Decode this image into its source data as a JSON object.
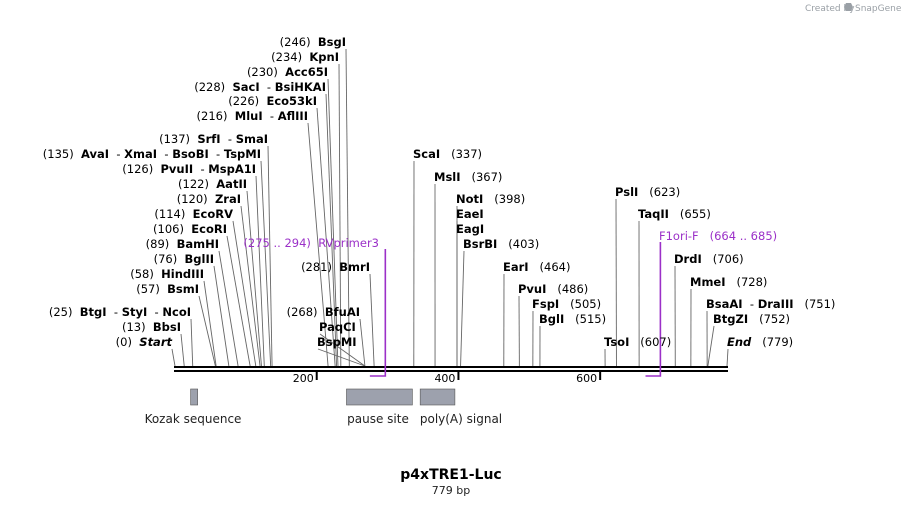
{
  "credit": {
    "text": "Created by",
    "brand": "SnapGene"
  },
  "plasmid": {
    "name": "p4xTRE1-Luc",
    "length_label": "779 bp",
    "length": 779
  },
  "ticks": [
    {
      "pos": 200,
      "label": "200"
    },
    {
      "pos": 400,
      "label": "400"
    },
    {
      "pos": 600,
      "label": "600"
    }
  ],
  "enzymes": [
    {
      "parts": [
        {
          "name": "BsgI"
        }
      ],
      "num": "(246)",
      "pos": 246,
      "side": "left",
      "italic": false
    },
    {
      "parts": [
        {
          "name": "KpnI"
        }
      ],
      "num": "(234)",
      "pos": 234,
      "side": "left",
      "italic": false
    },
    {
      "parts": [
        {
          "name": "Acc65I"
        }
      ],
      "num": "(230)",
      "pos": 230,
      "side": "left",
      "italic": false
    },
    {
      "parts": [
        {
          "name": "SacI"
        },
        {
          "name": "BsiHKAI"
        }
      ],
      "num": "(228)",
      "pos": 228,
      "side": "left",
      "italic": false
    },
    {
      "parts": [
        {
          "name": "Eco53kI"
        }
      ],
      "num": "(226)",
      "pos": 226,
      "side": "left",
      "italic": false
    },
    {
      "parts": [
        {
          "name": "MluI"
        },
        {
          "name": "AflIII"
        }
      ],
      "num": "(216)",
      "pos": 216,
      "side": "left",
      "italic": false
    },
    {
      "parts": [
        {
          "name": "SrfI"
        },
        {
          "name": "SmaI"
        }
      ],
      "num": "(137)",
      "pos": 137,
      "side": "left",
      "italic": false
    },
    {
      "parts": [
        {
          "name": "AvaI"
        },
        {
          "name": "XmaI"
        },
        {
          "name": "BsoBI"
        },
        {
          "name": "TspMI"
        }
      ],
      "num": "(135)",
      "pos": 135,
      "side": "left",
      "italic": false
    },
    {
      "parts": [
        {
          "name": "PvuII"
        },
        {
          "name": "MspA1I"
        }
      ],
      "num": "(126)",
      "pos": 126,
      "side": "left",
      "italic": false
    },
    {
      "parts": [
        {
          "name": "AatII"
        }
      ],
      "num": "(122)",
      "pos": 122,
      "side": "left",
      "italic": false
    },
    {
      "parts": [
        {
          "name": "ZraI"
        }
      ],
      "num": "(120)",
      "pos": 120,
      "side": "left",
      "italic": false
    },
    {
      "parts": [
        {
          "name": "EcoRV"
        }
      ],
      "num": "(114)",
      "pos": 114,
      "side": "left",
      "italic": false
    },
    {
      "parts": [
        {
          "name": "EcoRI"
        }
      ],
      "num": "(106)",
      "pos": 106,
      "side": "left",
      "italic": false
    },
    {
      "parts": [
        {
          "name": "BamHI"
        }
      ],
      "num": "(89)",
      "pos": 89,
      "side": "left",
      "italic": false
    },
    {
      "parts": [
        {
          "name": "BglII"
        }
      ],
      "num": "(76)",
      "pos": 76,
      "side": "left",
      "italic": false
    },
    {
      "parts": [
        {
          "name": "HindIII"
        }
      ],
      "num": "(58)",
      "pos": 58,
      "side": "left",
      "italic": false
    },
    {
      "parts": [
        {
          "name": "BsmI"
        }
      ],
      "num": "(57)",
      "pos": 57,
      "side": "left",
      "italic": false
    },
    {
      "parts": [
        {
          "name": "BtgI"
        },
        {
          "name": "StyI"
        },
        {
          "name": "NcoI"
        }
      ],
      "num": "(25)",
      "pos": 25,
      "side": "left",
      "italic": false
    },
    {
      "parts": [
        {
          "name": "BbsI"
        }
      ],
      "num": "(13)",
      "pos": 13,
      "side": "left",
      "italic": false
    },
    {
      "parts": [
        {
          "name": "Start"
        }
      ],
      "num": "(0)",
      "pos": 0,
      "side": "left",
      "italic": true
    },
    {
      "parts": [
        {
          "name": "BmrI"
        }
      ],
      "num": "(281)",
      "pos": 281,
      "side": "left",
      "italic": false
    },
    {
      "parts": [
        {
          "name": "BfuAI"
        }
      ],
      "num": "(268)",
      "pos": 268,
      "side": "left",
      "italic": false
    },
    {
      "parts": [
        {
          "name": "PaqCI"
        }
      ],
      "num": "",
      "pos": 268,
      "side": "right",
      "italic": false
    },
    {
      "parts": [
        {
          "name": "BspMI"
        }
      ],
      "num": "",
      "pos": 268,
      "side": "right",
      "italic": false
    },
    {
      "parts": [
        {
          "name": "ScaI"
        }
      ],
      "num": "(337)",
      "pos": 337,
      "side": "right",
      "italic": false
    },
    {
      "parts": [
        {
          "name": "MslI"
        }
      ],
      "num": "(367)",
      "pos": 367,
      "side": "right",
      "italic": false
    },
    {
      "parts": [
        {
          "name": "NotI"
        }
      ],
      "num": "(398)",
      "pos": 398,
      "side": "right",
      "italic": false
    },
    {
      "parts": [
        {
          "name": "EaeI"
        }
      ],
      "num": "",
      "pos": 398,
      "side": "right",
      "italic": false
    },
    {
      "parts": [
        {
          "name": "EagI"
        }
      ],
      "num": "",
      "pos": 398,
      "side": "right",
      "italic": false
    },
    {
      "parts": [
        {
          "name": "BsrBI"
        }
      ],
      "num": "(403)",
      "pos": 403,
      "side": "right",
      "italic": false
    },
    {
      "parts": [
        {
          "name": "EarI"
        }
      ],
      "num": "(464)",
      "pos": 464,
      "side": "right",
      "italic": false
    },
    {
      "parts": [
        {
          "name": "PvuI"
        }
      ],
      "num": "(486)",
      "pos": 486,
      "side": "right",
      "italic": false
    },
    {
      "parts": [
        {
          "name": "FspI"
        }
      ],
      "num": "(505)",
      "pos": 505,
      "side": "right",
      "italic": false
    },
    {
      "parts": [
        {
          "name": "BglI"
        }
      ],
      "num": "(515)",
      "pos": 515,
      "side": "right",
      "italic": false
    },
    {
      "parts": [
        {
          "name": "TsoI"
        }
      ],
      "num": "(607)",
      "pos": 607,
      "side": "right",
      "italic": false
    },
    {
      "parts": [
        {
          "name": "PslI"
        }
      ],
      "num": "(623)",
      "pos": 623,
      "side": "right",
      "italic": false
    },
    {
      "parts": [
        {
          "name": "TaqII"
        }
      ],
      "num": "(655)",
      "pos": 655,
      "side": "right",
      "italic": false
    },
    {
      "parts": [
        {
          "name": "DrdI"
        }
      ],
      "num": "(706)",
      "pos": 706,
      "side": "right",
      "italic": false
    },
    {
      "parts": [
        {
          "name": "MmeI"
        }
      ],
      "num": "(728)",
      "pos": 728,
      "side": "right",
      "italic": false
    },
    {
      "parts": [
        {
          "name": "BsaAI"
        },
        {
          "name": "DraIII"
        }
      ],
      "num": "(751)",
      "pos": 751,
      "side": "right",
      "italic": false
    },
    {
      "parts": [
        {
          "name": "BtgZI"
        }
      ],
      "num": "(752)",
      "pos": 752,
      "side": "right",
      "italic": false
    },
    {
      "parts": [
        {
          "name": "End"
        }
      ],
      "num": "(779)",
      "pos": 779,
      "side": "right",
      "italic": true
    }
  ],
  "primers": [
    {
      "name": "RVprimer3",
      "range": "(275 .. 294)",
      "start": 275,
      "end": 294,
      "strand": "reverse",
      "side": "left"
    },
    {
      "name": "F1ori-F",
      "range": "(664 .. 685)",
      "start": 664,
      "end": 685,
      "strand": "reverse",
      "side": "right"
    }
  ],
  "features": [
    {
      "name": "Kozak sequence",
      "start": 22,
      "end": 32,
      "color": "#9da1ad"
    },
    {
      "name": "pause site",
      "start": 242,
      "end": 335,
      "color": "#9da1ad"
    },
    {
      "name": "poly(A) signal",
      "start": 346,
      "end": 395,
      "color": "#9da1ad"
    }
  ],
  "colors": {
    "primer": "#9b30c8",
    "feature": "#9da1ad",
    "leader": "#666666",
    "backbone": "#000000"
  }
}
